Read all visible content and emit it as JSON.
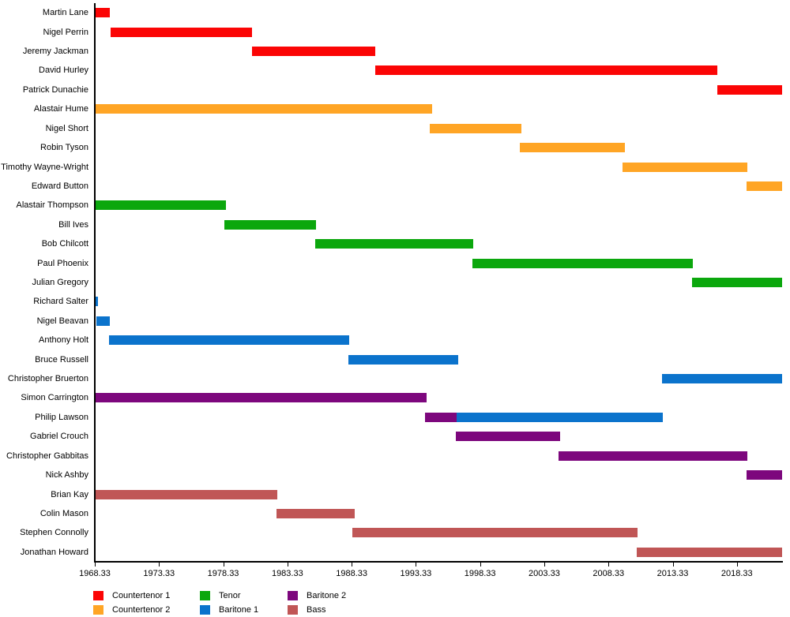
{
  "chart_data": {
    "type": "bar",
    "variant": "gantt-timeline",
    "title": "",
    "xlabel": "",
    "ylabel": "",
    "grid": false,
    "x_axis": {
      "min": 1968.33,
      "max": 2021.85,
      "tick_values": [
        1968.33,
        1973.33,
        1978.33,
        1983.33,
        1988.33,
        1993.33,
        1998.33,
        2003.33,
        2008.33,
        2013.33,
        2018.33
      ],
      "tick_labels": [
        "1968.33",
        "1973.33",
        "1978.33",
        "1983.33",
        "1988.33",
        "1993.33",
        "1998.33",
        "2003.33",
        "2008.33",
        "2013.33",
        "2018.33"
      ]
    },
    "legend": {
      "position": "bottom-left",
      "entries": [
        {
          "label": "Countertenor 1",
          "color": "#FB0505"
        },
        {
          "label": "Countertenor 2",
          "color": "#FFA525"
        },
        {
          "label": "Tenor",
          "color": "#0BA70D"
        },
        {
          "label": "Baritone 1",
          "color": "#0B73CC"
        },
        {
          "label": "Baritone 2",
          "color": "#7D077D"
        },
        {
          "label": "Bass",
          "color": "#C05656"
        }
      ]
    },
    "colors": {
      "Countertenor 1": "#FB0505",
      "Countertenor 2": "#FFA525",
      "Tenor": "#0BA70D",
      "Baritone 1": "#0B73CC",
      "Baritone 2": "#7D077D",
      "Bass": "#C05656"
    },
    "rows": [
      {
        "name": "Martin Lane",
        "segments": [
          {
            "part": "Countertenor 1",
            "start": 1968.42,
            "end": 1969.53
          }
        ]
      },
      {
        "name": "Nigel Perrin",
        "segments": [
          {
            "part": "Countertenor 1",
            "start": 1969.53,
            "end": 1980.56
          }
        ]
      },
      {
        "name": "Jeremy Jackman",
        "segments": [
          {
            "part": "Countertenor 1",
            "start": 1980.56,
            "end": 1990.15
          }
        ]
      },
      {
        "name": "David Hurley",
        "segments": [
          {
            "part": "Countertenor 1",
            "start": 1990.15,
            "end": 2016.8
          }
        ]
      },
      {
        "name": "Patrick Dunachie",
        "segments": [
          {
            "part": "Countertenor 1",
            "start": 2016.8,
            "end": 2021.85
          }
        ]
      },
      {
        "name": "Alastair Hume",
        "segments": [
          {
            "part": "Countertenor 2",
            "start": 1968.42,
            "end": 1994.6
          }
        ]
      },
      {
        "name": "Nigel Short",
        "segments": [
          {
            "part": "Countertenor 2",
            "start": 1994.42,
            "end": 2001.55
          }
        ]
      },
      {
        "name": "Robin Tyson",
        "segments": [
          {
            "part": "Countertenor 2",
            "start": 2001.42,
            "end": 2009.58
          }
        ]
      },
      {
        "name": "Timothy Wayne-Wright",
        "segments": [
          {
            "part": "Countertenor 2",
            "start": 2009.45,
            "end": 2019.13
          }
        ]
      },
      {
        "name": "Edward Button",
        "segments": [
          {
            "part": "Countertenor 2",
            "start": 2019.07,
            "end": 2021.85
          }
        ]
      },
      {
        "name": "Alastair Thompson",
        "segments": [
          {
            "part": "Tenor",
            "start": 1968.42,
            "end": 1978.53
          }
        ]
      },
      {
        "name": "Bill Ives",
        "segments": [
          {
            "part": "Tenor",
            "start": 1978.42,
            "end": 1985.55
          }
        ]
      },
      {
        "name": "Bob Chilcott",
        "segments": [
          {
            "part": "Tenor",
            "start": 1985.51,
            "end": 1997.78
          }
        ]
      },
      {
        "name": "Paul Phoenix",
        "segments": [
          {
            "part": "Tenor",
            "start": 1997.71,
            "end": 2014.88
          }
        ]
      },
      {
        "name": "Julian Gregory",
        "segments": [
          {
            "part": "Tenor",
            "start": 2014.81,
            "end": 2021.85
          }
        ]
      },
      {
        "name": "Richard Salter",
        "segments": [
          {
            "part": "Baritone 1",
            "start": 1968.42,
            "end": 1968.6
          }
        ]
      },
      {
        "name": "Nigel Beavan",
        "segments": [
          {
            "part": "Baritone 1",
            "start": 1968.45,
            "end": 1969.5
          }
        ]
      },
      {
        "name": "Anthony Holt",
        "segments": [
          {
            "part": "Baritone 1",
            "start": 1969.46,
            "end": 1988.12
          }
        ]
      },
      {
        "name": "Bruce Russell",
        "segments": [
          {
            "part": "Baritone 1",
            "start": 1988.05,
            "end": 1996.6
          }
        ]
      },
      {
        "name": "Christopher Bruerton",
        "segments": [
          {
            "part": "Baritone 1",
            "start": 2012.47,
            "end": 2021.85
          }
        ]
      },
      {
        "name": "Simon Carrington",
        "segments": [
          {
            "part": "Baritone 2",
            "start": 1968.42,
            "end": 1994.16
          }
        ]
      },
      {
        "name": "Philip Lawson",
        "segments": [
          {
            "part": "Baritone 2",
            "start": 1994.05,
            "end": 1996.49
          },
          {
            "part": "Baritone 1",
            "start": 1996.49,
            "end": 2012.54
          }
        ]
      },
      {
        "name": "Gabriel Crouch",
        "segments": [
          {
            "part": "Baritone 2",
            "start": 1996.42,
            "end": 2004.56
          }
        ]
      },
      {
        "name": "Christopher Gabbitas",
        "segments": [
          {
            "part": "Baritone 2",
            "start": 2004.45,
            "end": 2019.16
          }
        ]
      },
      {
        "name": "Nick Ashby",
        "segments": [
          {
            "part": "Baritone 2",
            "start": 2019.07,
            "end": 2021.85
          }
        ]
      },
      {
        "name": "Brian Kay",
        "segments": [
          {
            "part": "Bass",
            "start": 1968.42,
            "end": 1982.54
          }
        ]
      },
      {
        "name": "Colin Mason",
        "segments": [
          {
            "part": "Bass",
            "start": 1982.47,
            "end": 1988.54
          }
        ]
      },
      {
        "name": "Stephen Connolly",
        "segments": [
          {
            "part": "Bass",
            "start": 1988.4,
            "end": 2010.62
          }
        ]
      },
      {
        "name": "Jonathan Howard",
        "segments": [
          {
            "part": "Bass",
            "start": 2010.56,
            "end": 2021.85
          }
        ]
      }
    ]
  }
}
